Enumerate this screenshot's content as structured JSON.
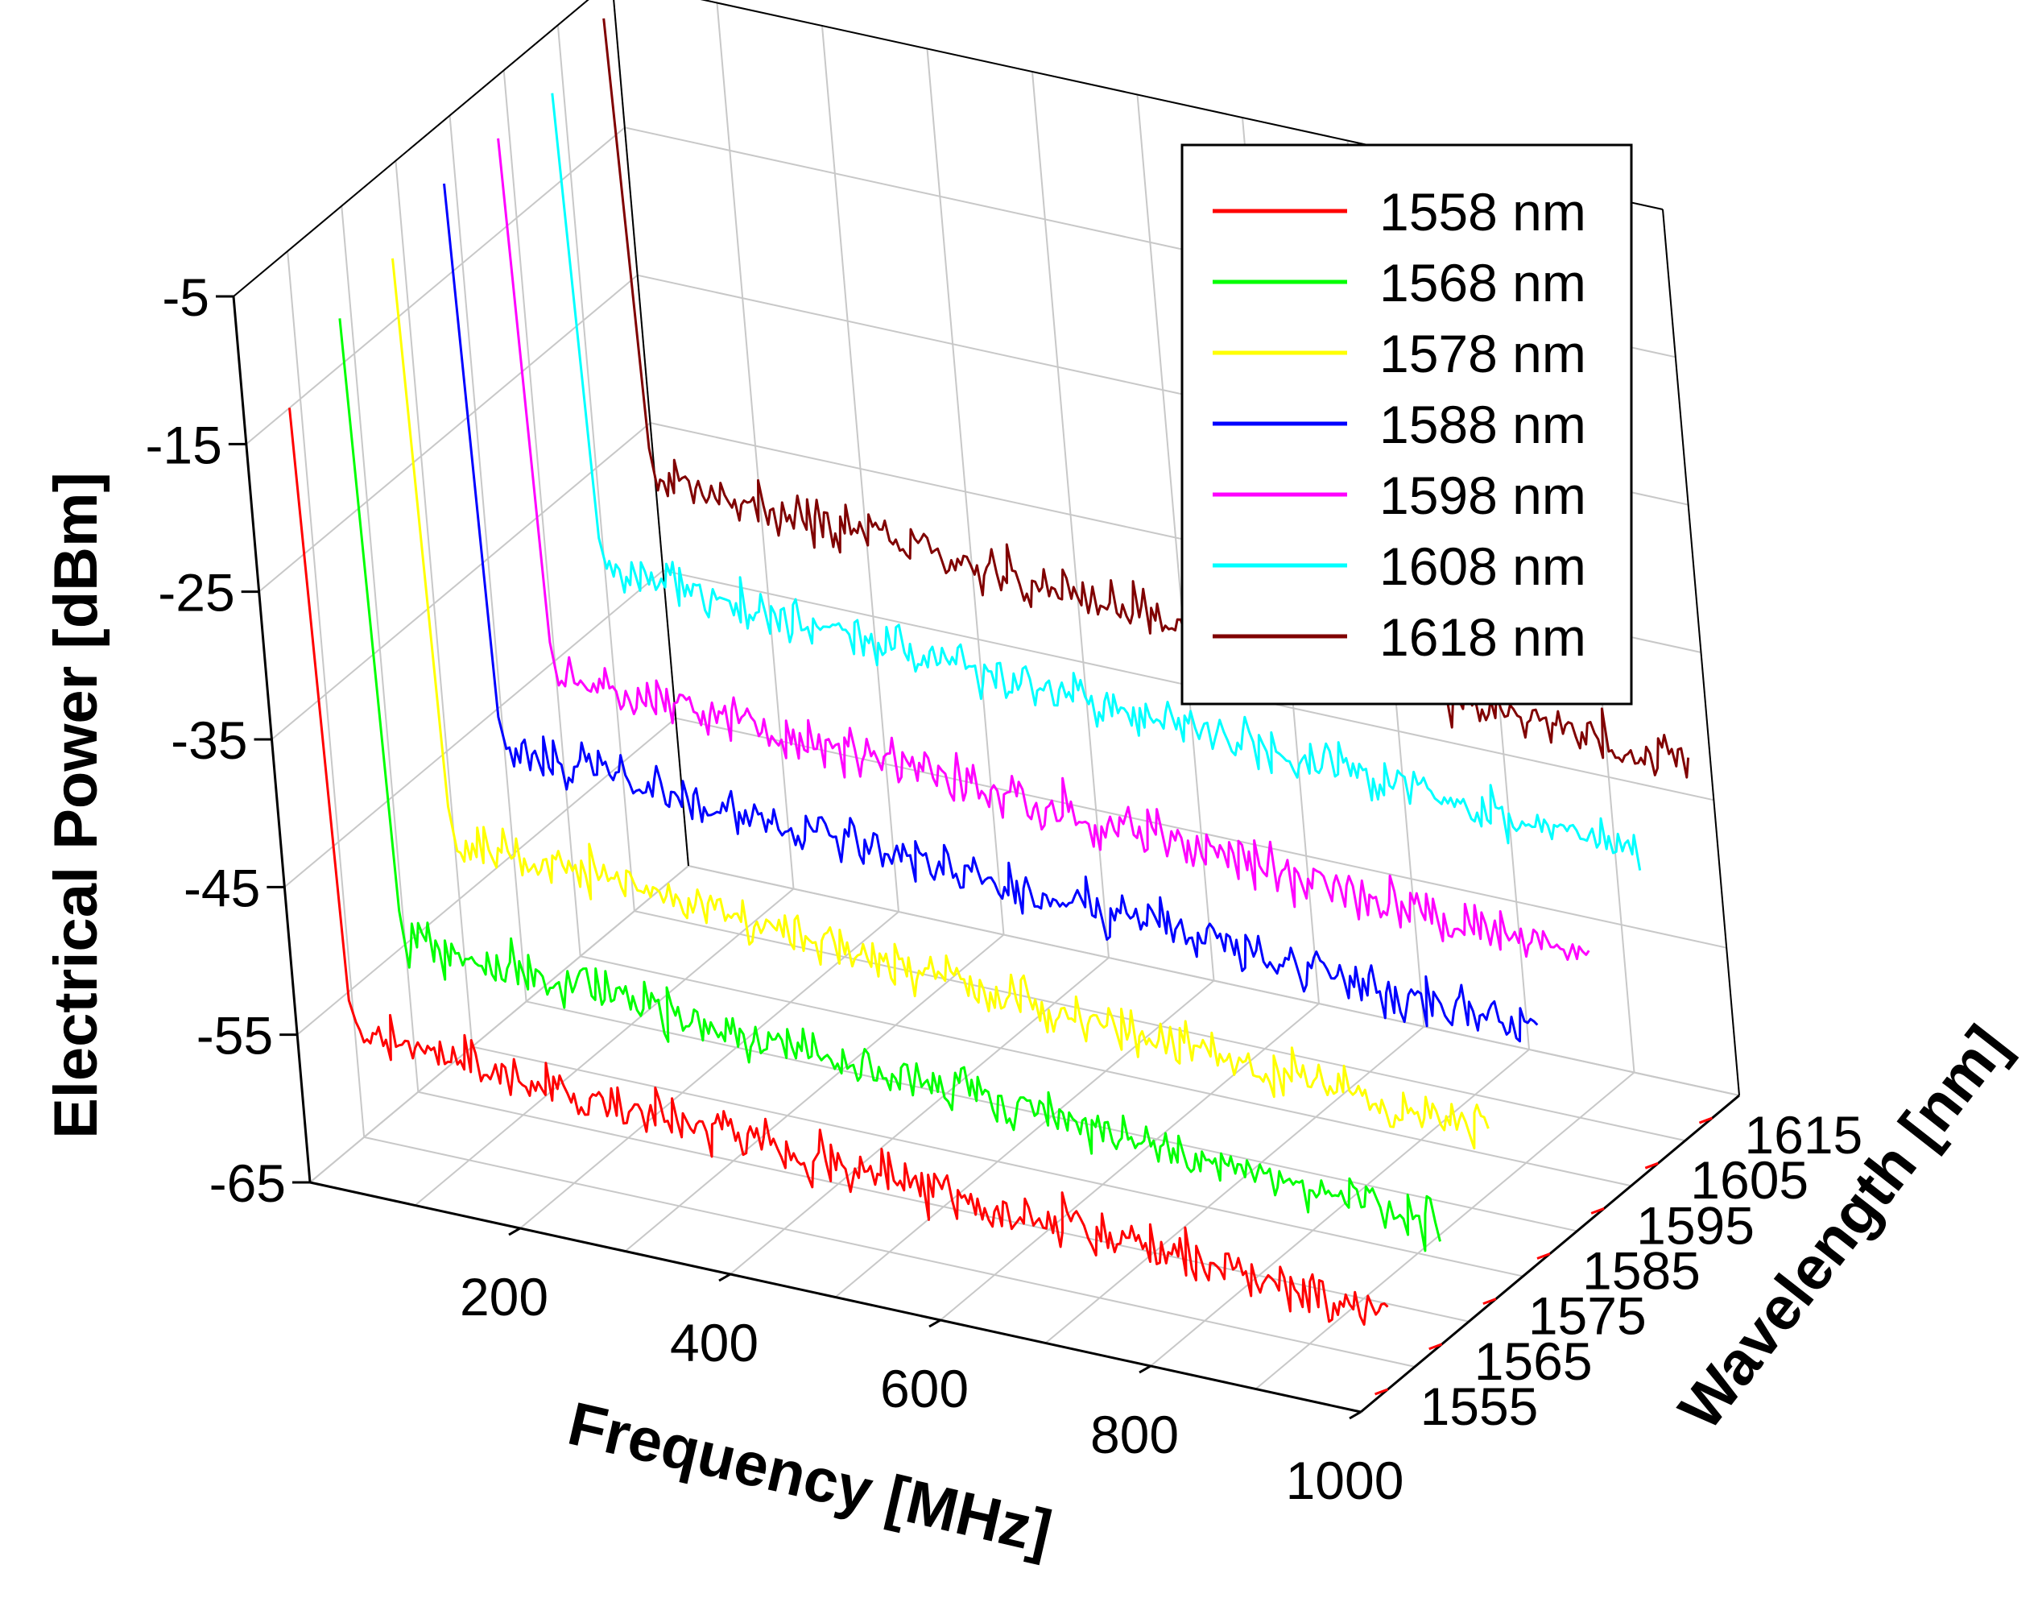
{
  "chart_data": {
    "type": "line",
    "projection": "3d-waterfall",
    "title": "",
    "x_axis": {
      "label": "Frequency [MHz]",
      "range": [
        0,
        1000
      ],
      "ticks": [
        "200",
        "400",
        "600",
        "800",
        "1000"
      ]
    },
    "y_axis": {
      "label": "Wavelength [nm]",
      "range": [
        1550,
        1620
      ],
      "ticks": [
        "1555",
        "1565",
        "1575",
        "1585",
        "1595",
        "1605",
        "1615"
      ]
    },
    "z_axis": {
      "label": "Electrical Power [dBm]",
      "range": [
        -65,
        -5
      ],
      "ticks": [
        "-5",
        "-15",
        "-25",
        "-35",
        "-45",
        "-55",
        "-65"
      ]
    },
    "grid": true,
    "legend_position": "top-right",
    "series": [
      {
        "name": "1558 nm",
        "wavelength": 1558,
        "color": "#ff0000",
        "peak_dbm": -15,
        "floor_dbm": -57,
        "trend_db_per_1000mhz": -4
      },
      {
        "name": "1568 nm",
        "wavelength": 1568,
        "color": "#00ff00",
        "peak_dbm": -12,
        "floor_dbm": -54,
        "trend_db_per_1000mhz": -4
      },
      {
        "name": "1578 nm",
        "wavelength": 1578,
        "color": "#ffff00",
        "peak_dbm": -11,
        "floor_dbm": -50,
        "trend_db_per_1000mhz": -5
      },
      {
        "name": "1588 nm",
        "wavelength": 1588,
        "color": "#0000ff",
        "peak_dbm": -9,
        "floor_dbm": -47,
        "trend_db_per_1000mhz": -4
      },
      {
        "name": "1598 nm",
        "wavelength": 1598,
        "color": "#ff00ff",
        "peak_dbm": -9,
        "floor_dbm": -45,
        "trend_db_per_1000mhz": -4
      },
      {
        "name": "1608 nm",
        "wavelength": 1608,
        "color": "#00ffff",
        "peak_dbm": -9,
        "floor_dbm": -41,
        "trend_db_per_1000mhz": -4
      },
      {
        "name": "1618 nm",
        "wavelength": 1618,
        "color": "#800000",
        "peak_dbm": -7,
        "floor_dbm": -38,
        "trend_db_per_1000mhz": -4
      }
    ]
  }
}
